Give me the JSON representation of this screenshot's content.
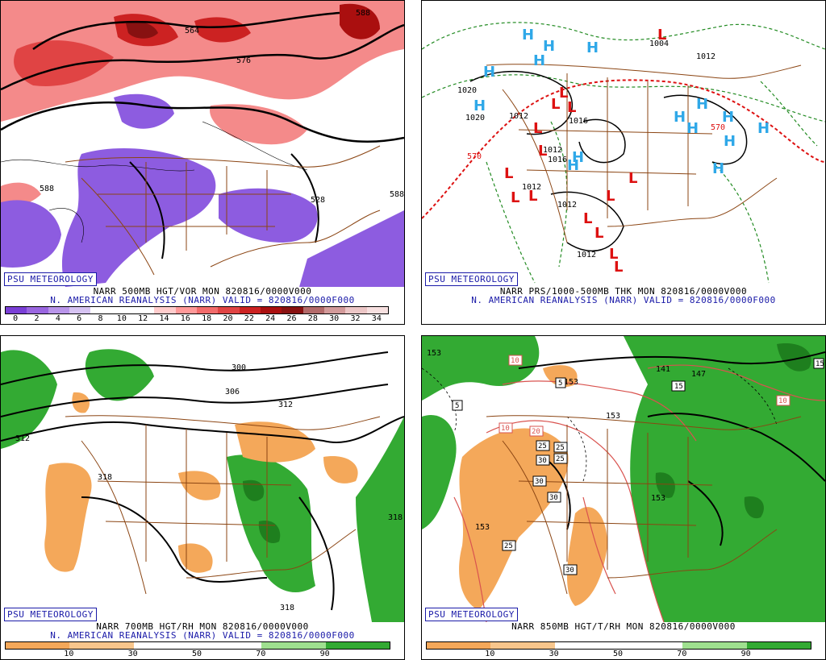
{
  "panels": [
    {
      "id": "p1",
      "watermark": "PSU METEOROLOGY",
      "caption1": "NARR 500MB HGT/VOR MON 820816/0000V000",
      "caption2": "N. AMERICAN REANALYSIS (NARR) VALID = 820816/0000F000",
      "colorbar": {
        "colors": [
          "#7a3fd6",
          "#9a66e0",
          "#b995ea",
          "#d6c3f2",
          "#ffffff",
          "#ffffff",
          "#ffffff",
          "#ffcccc",
          "#ff9999",
          "#f26b6b",
          "#e04444",
          "#cc2222",
          "#aa0f0f",
          "#881111",
          "#b36a6a",
          "#d39a9a",
          "#ecc6c6",
          "#f7e0e0"
        ],
        "ticks": [
          "0",
          "2",
          "4",
          "6",
          "8",
          "10",
          "12",
          "14",
          "16",
          "18",
          "20",
          "22",
          "24",
          "26",
          "28",
          "30",
          "32",
          "34"
        ]
      },
      "contour_labels": [
        "564",
        "576",
        "588",
        "588",
        "588",
        "528"
      ]
    },
    {
      "id": "p2",
      "watermark": "PSU METEOROLOGY",
      "caption1": "NARR PRS/1000-500MB THK MON 820816/0000V000",
      "caption2": "N. AMERICAN REANALYSIS (NARR) VALID = 820816/0000F000",
      "highs": "H",
      "lows": "L",
      "contour_labels": [
        "1004",
        "1012",
        "1020",
        "1020",
        "1012",
        "1016",
        "1012",
        "1012",
        "1016",
        "1012",
        "1012",
        "570",
        "570"
      ]
    },
    {
      "id": "p3",
      "watermark": "PSU METEOROLOGY",
      "caption1": "NARR 700MB HGT/RH MON 820816/0000V000",
      "caption2": "N. AMERICAN REANALYSIS (NARR) VALID = 820816/0000F000",
      "colorbar": {
        "colors": [
          "#f4a85a",
          "#f8c68c",
          "#ffffff",
          "#ffffff",
          "#9fe08f",
          "#33aa33"
        ],
        "ticks": [
          "10",
          "30",
          "50",
          "70",
          "90"
        ]
      },
      "contour_labels": [
        "300",
        "306",
        "312",
        "312",
        "318",
        "318",
        "318"
      ]
    },
    {
      "id": "p4",
      "watermark": "PSU METEOROLOGY",
      "caption1": "NARR 850MB HGT/T/RH MON 820816/0000V000",
      "colorbar": {
        "colors": [
          "#f4a85a",
          "#f8c68c",
          "#ffffff",
          "#ffffff",
          "#9fe08f",
          "#33aa33"
        ],
        "ticks": [
          "10",
          "30",
          "50",
          "70",
          "90"
        ]
      },
      "contour_labels": [
        "153",
        "147",
        "141",
        "153",
        "153",
        "153",
        "153",
        "15",
        "5",
        "5",
        "10",
        "10",
        "10",
        "20",
        "25",
        "25",
        "25",
        "30",
        "30",
        "30",
        "30",
        "15",
        "25"
      ]
    }
  ]
}
